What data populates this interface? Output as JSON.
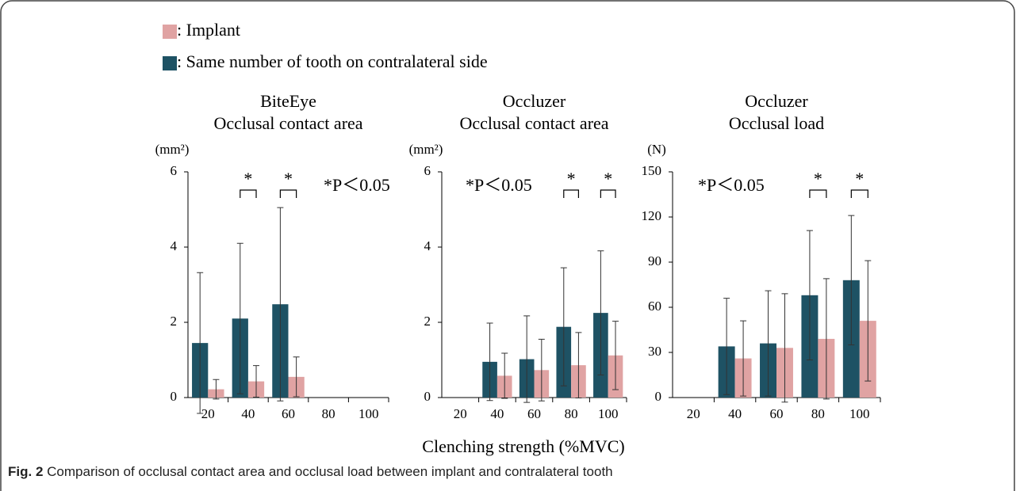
{
  "legend": {
    "entries": [
      {
        "name": ": Implant",
        "color": "#e0a3a3"
      },
      {
        "name": ": Same number of tooth on contralateral side",
        "color": "#1e5264"
      }
    ]
  },
  "xlabel": "Clenching strength (%MVC)",
  "caption": {
    "label": "Fig. 2",
    "text": "Comparison of occlusal contact area and occlusal load between implant and contralateral tooth"
  },
  "chart_data": [
    {
      "type": "bar",
      "title": [
        "BiteEye",
        "Occlusal contact area"
      ],
      "ylabel": "(mm²)",
      "categories": [
        "20",
        "40",
        "60",
        "80",
        "100"
      ],
      "series": [
        {
          "color": "#1e5264",
          "values": [
            1.45,
            2.1,
            2.48,
            null,
            null
          ],
          "errors": [
            1.87,
            2.0,
            2.57,
            null,
            null
          ]
        },
        {
          "color": "#e0a3a3",
          "values": [
            0.22,
            0.43,
            0.55,
            null,
            null
          ],
          "errors": [
            0.26,
            0.42,
            0.53,
            null,
            null
          ]
        }
      ],
      "ylim": [
        0,
        6
      ],
      "yticks": [
        0,
        2,
        4,
        6
      ],
      "annotation": "*P＜0.05",
      "significance": {
        "categories": [
          1,
          2
        ],
        "labels": [
          "*",
          "*"
        ]
      }
    },
    {
      "type": "bar",
      "title": [
        "Occluzer",
        "Occlusal contact area"
      ],
      "ylabel": "(mm²)",
      "categories": [
        "20",
        "40",
        "60",
        "80",
        "100"
      ],
      "series": [
        {
          "color": "#1e5264",
          "values": [
            null,
            0.95,
            1.02,
            1.88,
            2.25
          ],
          "errors": [
            null,
            1.03,
            1.15,
            1.57,
            1.65
          ]
        },
        {
          "color": "#e0a3a3",
          "values": [
            null,
            0.58,
            0.73,
            0.86,
            1.12
          ],
          "errors": [
            null,
            0.6,
            0.82,
            0.87,
            0.91
          ]
        }
      ],
      "ylim": [
        0,
        6
      ],
      "yticks": [
        0,
        2,
        4,
        6
      ],
      "annotation": "*P＜0.05",
      "significance": {
        "categories": [
          3,
          4
        ],
        "labels": [
          "*",
          "*"
        ]
      }
    },
    {
      "type": "bar",
      "title": [
        "Occluzer",
        "Occlusal load"
      ],
      "ylabel": "(N)",
      "categories": [
        "20",
        "40",
        "60",
        "80",
        "100"
      ],
      "series": [
        {
          "color": "#1e5264",
          "values": [
            null,
            34,
            36,
            68,
            78
          ],
          "errors": [
            null,
            32,
            35,
            43,
            43
          ]
        },
        {
          "color": "#e0a3a3",
          "values": [
            null,
            26,
            33,
            39,
            51
          ],
          "errors": [
            null,
            25,
            36,
            40,
            40
          ]
        }
      ],
      "ylim": [
        0,
        150
      ],
      "yticks": [
        0,
        30,
        60,
        90,
        120,
        150
      ],
      "annotation": "*P＜0.05",
      "significance": {
        "categories": [
          3,
          4
        ],
        "labels": [
          "*",
          "*"
        ]
      }
    }
  ]
}
